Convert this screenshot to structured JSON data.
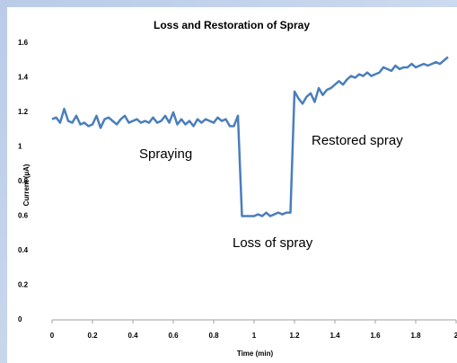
{
  "chart_data": {
    "type": "line",
    "title": "Loss and Restoration of Spray",
    "x_label": "Time (min)",
    "y_label": "Current (µA)",
    "x": [
      0,
      0.02,
      0.04,
      0.06,
      0.08,
      0.1,
      0.12,
      0.14,
      0.16,
      0.18,
      0.2,
      0.22,
      0.24,
      0.26,
      0.28,
      0.3,
      0.32,
      0.34,
      0.36,
      0.38,
      0.4,
      0.42,
      0.44,
      0.46,
      0.48,
      0.5,
      0.52,
      0.54,
      0.56,
      0.58,
      0.6,
      0.62,
      0.64,
      0.66,
      0.68,
      0.7,
      0.72,
      0.74,
      0.76,
      0.78,
      0.8,
      0.82,
      0.84,
      0.86,
      0.88,
      0.9,
      0.92,
      0.94,
      0.96,
      0.98,
      1,
      1.02,
      1.04,
      1.06,
      1.08,
      1.1,
      1.12,
      1.14,
      1.16,
      1.18,
      1.2,
      1.22,
      1.24,
      1.26,
      1.28,
      1.3,
      1.32,
      1.34,
      1.36,
      1.38,
      1.4,
      1.42,
      1.44,
      1.46,
      1.48,
      1.5,
      1.52,
      1.54,
      1.56,
      1.58,
      1.6,
      1.62,
      1.64,
      1.66,
      1.68,
      1.7,
      1.72,
      1.74,
      1.76,
      1.78,
      1.8,
      1.82,
      1.84,
      1.86,
      1.88,
      1.9,
      1.92,
      1.94,
      1.96
    ],
    "series": [
      {
        "color": "#4a7ebb",
        "values": [
          1.16,
          1.17,
          1.14,
          1.22,
          1.15,
          1.14,
          1.18,
          1.13,
          1.14,
          1.12,
          1.13,
          1.18,
          1.11,
          1.16,
          1.17,
          1.15,
          1.13,
          1.16,
          1.18,
          1.14,
          1.15,
          1.16,
          1.14,
          1.15,
          1.14,
          1.17,
          1.14,
          1.15,
          1.18,
          1.14,
          1.2,
          1.13,
          1.16,
          1.13,
          1.15,
          1.12,
          1.16,
          1.14,
          1.16,
          1.15,
          1.14,
          1.17,
          1.15,
          1.16,
          1.12,
          1.12,
          1.18,
          0.6,
          0.6,
          0.6,
          0.6,
          0.61,
          0.6,
          0.62,
          0.6,
          0.61,
          0.62,
          0.61,
          0.62,
          0.62,
          1.32,
          1.28,
          1.25,
          1.29,
          1.31,
          1.26,
          1.34,
          1.3,
          1.33,
          1.34,
          1.36,
          1.38,
          1.36,
          1.39,
          1.41,
          1.4,
          1.42,
          1.41,
          1.43,
          1.41,
          1.42,
          1.43,
          1.46,
          1.45,
          1.44,
          1.47,
          1.45,
          1.46,
          1.46,
          1.48,
          1.46,
          1.47,
          1.48,
          1.47,
          1.48,
          1.49,
          1.48,
          1.5,
          1.52
        ]
      }
    ],
    "xlim": [
      0,
      2
    ],
    "xticks": [
      0,
      0.2,
      0.4,
      0.6,
      0.8,
      1,
      1.2,
      1.4,
      1.6,
      1.8,
      2
    ],
    "ylim": [
      0,
      1.6
    ],
    "yticks": [
      0,
      0.2,
      0.4,
      0.6,
      0.8,
      1,
      1.2,
      1.4,
      1.6
    ],
    "grid": false,
    "annotations": [
      "Spraying",
      "Restored spray",
      "Loss of spray"
    ]
  }
}
